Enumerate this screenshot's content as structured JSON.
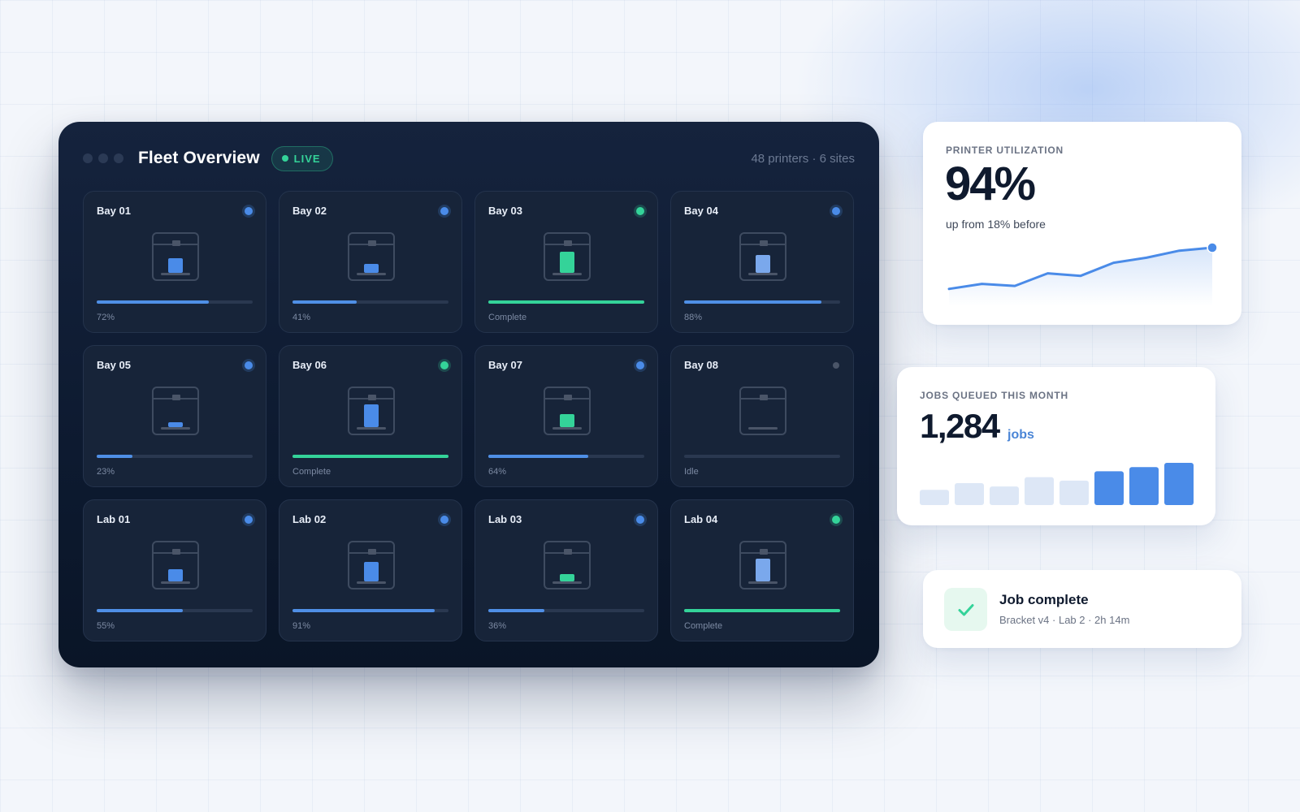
{
  "panel": {
    "title": "Fleet Overview",
    "live_label": "LIVE",
    "meta": "48 printers · 6 sites",
    "printers": [
      {
        "name": "Bay 01",
        "state": "printing",
        "progress": 0.72,
        "status": "72%",
        "part": {
          "w": 18,
          "h": 18,
          "color": "blue"
        }
      },
      {
        "name": "Bay 02",
        "state": "printing",
        "progress": 0.41,
        "status": "41%",
        "part": {
          "w": 18,
          "h": 11,
          "color": "blue"
        }
      },
      {
        "name": "Bay 03",
        "state": "complete",
        "progress": 1.0,
        "status": "Complete",
        "part": {
          "w": 18,
          "h": 26,
          "color": "green"
        }
      },
      {
        "name": "Bay 04",
        "state": "printing",
        "progress": 0.88,
        "status": "88%",
        "part": {
          "w": 18,
          "h": 22,
          "color": "lightblue"
        }
      },
      {
        "name": "Bay 05",
        "state": "printing",
        "progress": 0.23,
        "status": "23%",
        "part": {
          "w": 18,
          "h": 6,
          "color": "blue"
        }
      },
      {
        "name": "Bay 06",
        "state": "complete",
        "progress": 1.0,
        "status": "Complete",
        "part": {
          "w": 18,
          "h": 28,
          "color": "blue"
        }
      },
      {
        "name": "Bay 07",
        "state": "printing",
        "progress": 0.64,
        "status": "64%",
        "part": {
          "w": 18,
          "h": 16,
          "color": "green"
        }
      },
      {
        "name": "Bay 08",
        "state": "idle",
        "progress": 0.0,
        "status": "Idle",
        "part": null
      },
      {
        "name": "Lab 01",
        "state": "printing",
        "progress": 0.55,
        "status": "55%",
        "part": {
          "w": 18,
          "h": 15,
          "color": "blue"
        }
      },
      {
        "name": "Lab 02",
        "state": "printing",
        "progress": 0.91,
        "status": "91%",
        "part": {
          "w": 18,
          "h": 24,
          "color": "blue"
        }
      },
      {
        "name": "Lab 03",
        "state": "printing",
        "progress": 0.36,
        "status": "36%",
        "part": {
          "w": 18,
          "h": 9,
          "color": "green"
        }
      },
      {
        "name": "Lab 04",
        "state": "complete",
        "progress": 1.0,
        "status": "Complete",
        "part": {
          "w": 18,
          "h": 28,
          "color": "lightblue"
        }
      }
    ]
  },
  "utilization": {
    "label": "PRINTER UTILIZATION",
    "value": "94%",
    "subtitle": "up from 18% before",
    "trend": [
      0.18,
      0.28,
      0.24,
      0.49,
      0.44,
      0.7,
      0.8,
      0.94,
      1.0
    ]
  },
  "jobs": {
    "label": "JOBS QUEUED THIS MONTH",
    "value": "1,284",
    "unit": "jobs",
    "bars": [
      0.36,
      0.52,
      0.44,
      0.66,
      0.58,
      0.8,
      0.9,
      1.0
    ],
    "highlight_from": 5
  },
  "notification": {
    "title": "Job complete",
    "subtitle": "Bracket v4 · Lab 2 · 2h 14m"
  },
  "colors": {
    "accent_blue": "#4a8be8",
    "success_green": "#34d399",
    "bar_light": "#dde7f6"
  }
}
